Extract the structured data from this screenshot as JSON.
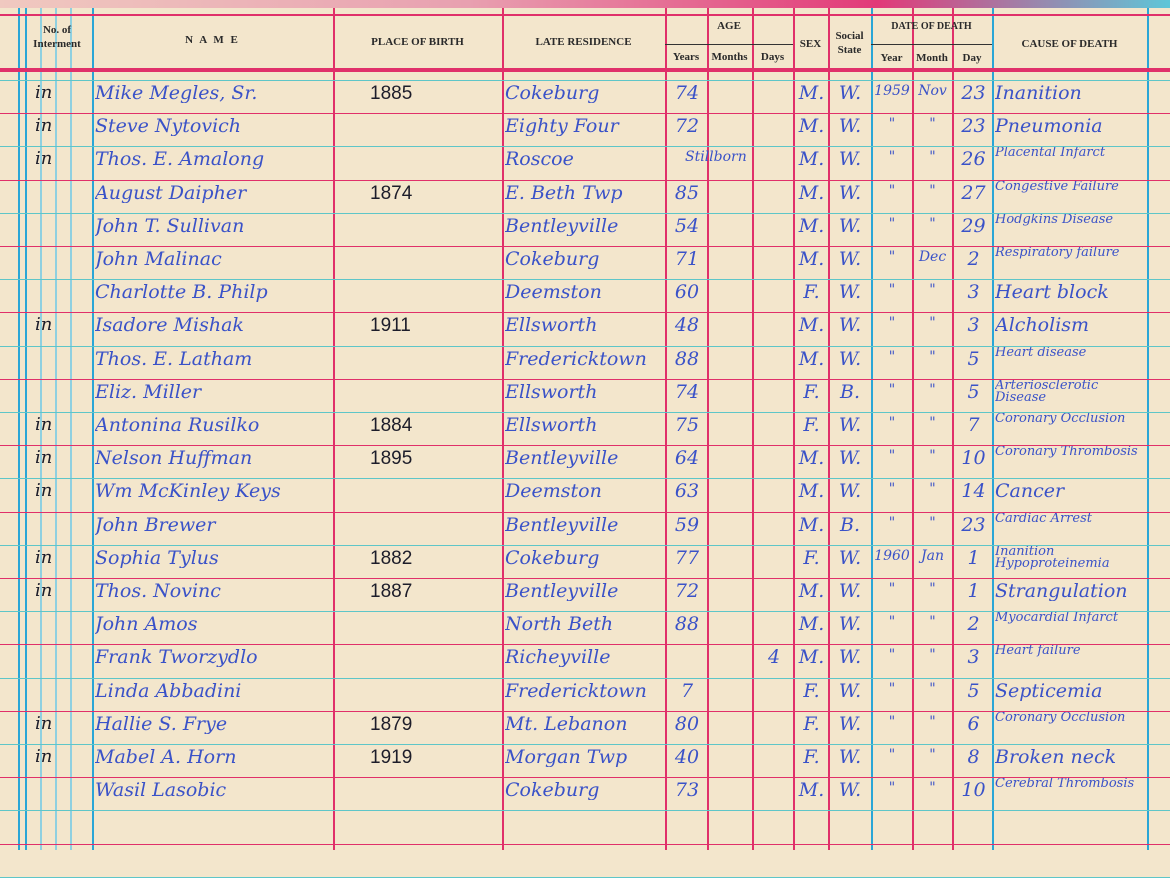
{
  "colors": {
    "paper": "#f3e6cc",
    "red_rule": "#e0306a",
    "blue_rule": "#2aa6d6",
    "ink_blue": "#3a52c8",
    "ink_black": "#1d1d2a"
  },
  "headers": {
    "interment": "No. of Interment",
    "name": "N A M E",
    "place_of_birth": "PLACE OF BIRTH",
    "late_residence": "LATE RESIDENCE",
    "age": "AGE",
    "years": "Years",
    "months": "Months",
    "days": "Days",
    "sex": "SEX",
    "social_state": "Social State",
    "date_of_death": "DATE OF DEATH",
    "year": "Year",
    "month": "Month",
    "day": "Day",
    "cause_of_death": "CAUSE OF DEATH"
  },
  "rows": [
    {
      "mark": "in",
      "name": "Mike Megles, Sr.",
      "birth": "1885",
      "residence": "Cokeburg",
      "years": "74",
      "months": "",
      "days": "",
      "sex": "M.",
      "social": "W.",
      "year": "1959",
      "month": "Nov",
      "day": "23",
      "cause": "Inanition"
    },
    {
      "mark": "in",
      "name": "Steve Nytovich",
      "birth": "",
      "residence": "Eighty Four",
      "years": "72",
      "months": "",
      "days": "",
      "sex": "M.",
      "social": "W.",
      "year": "\"",
      "month": "\"",
      "day": "23",
      "cause": "Pneumonia"
    },
    {
      "mark": "in",
      "name": "Thos. E. Amalong",
      "birth": "",
      "residence": "Roscoe",
      "years": "",
      "months": "Stillborn",
      "days": "",
      "sex": "M.",
      "social": "W.",
      "year": "\"",
      "month": "\"",
      "day": "26",
      "cause": "Placental Infarct"
    },
    {
      "mark": "",
      "name": "August Daipher",
      "birth": "1874",
      "residence": "E. Beth Twp",
      "years": "85",
      "months": "",
      "days": "",
      "sex": "M.",
      "social": "W.",
      "year": "\"",
      "month": "\"",
      "day": "27",
      "cause": "Congestive Failure"
    },
    {
      "mark": "",
      "name": "John T. Sullivan",
      "birth": "",
      "residence": "Bentleyville",
      "years": "54",
      "months": "",
      "days": "",
      "sex": "M.",
      "social": "W.",
      "year": "\"",
      "month": "\"",
      "day": "29",
      "cause": "Hodgkins Disease"
    },
    {
      "mark": "",
      "name": "John Malinac",
      "birth": "",
      "residence": "Cokeburg",
      "years": "71",
      "months": "",
      "days": "",
      "sex": "M.",
      "social": "W.",
      "year": "\"",
      "month": "Dec",
      "day": "2",
      "cause": "Respiratory failure"
    },
    {
      "mark": "",
      "name": "Charlotte B. Philp",
      "birth": "",
      "residence": "Deemston",
      "years": "60",
      "months": "",
      "days": "",
      "sex": "F.",
      "social": "W.",
      "year": "\"",
      "month": "\"",
      "day": "3",
      "cause": "Heart block"
    },
    {
      "mark": "in",
      "name": "Isadore Mishak",
      "birth": "1911",
      "residence": "Ellsworth",
      "years": "48",
      "months": "",
      "days": "",
      "sex": "M.",
      "social": "W.",
      "year": "\"",
      "month": "\"",
      "day": "3",
      "cause": "Alcholism"
    },
    {
      "mark": "",
      "name": "Thos. E. Latham",
      "birth": "",
      "residence": "Fredericktown",
      "years": "88",
      "months": "",
      "days": "",
      "sex": "M.",
      "social": "W.",
      "year": "\"",
      "month": "\"",
      "day": "5",
      "cause": "Heart disease"
    },
    {
      "mark": "",
      "name": "Eliz. Miller",
      "birth": "",
      "residence": "Ellsworth",
      "years": "74",
      "months": "",
      "days": "",
      "sex": "F.",
      "social": "B.",
      "year": "\"",
      "month": "\"",
      "day": "5",
      "cause": "Arteriosclerotic Disease"
    },
    {
      "mark": "in",
      "name": "Antonina Rusilko",
      "birth": "1884",
      "residence": "Ellsworth",
      "years": "75",
      "months": "",
      "days": "",
      "sex": "F.",
      "social": "W.",
      "year": "\"",
      "month": "\"",
      "day": "7",
      "cause": "Coronary Occlusion"
    },
    {
      "mark": "in",
      "name": "Nelson Huffman",
      "birth": "1895",
      "residence": "Bentleyville",
      "years": "64",
      "months": "",
      "days": "",
      "sex": "M.",
      "social": "W.",
      "year": "\"",
      "month": "\"",
      "day": "10",
      "cause": "Coronary Thrombosis"
    },
    {
      "mark": "in",
      "name": "Wm McKinley Keys",
      "birth": "",
      "residence": "Deemston",
      "years": "63",
      "months": "",
      "days": "",
      "sex": "M.",
      "social": "W.",
      "year": "\"",
      "month": "\"",
      "day": "14",
      "cause": "Cancer"
    },
    {
      "mark": "",
      "name": "John Brewer",
      "birth": "",
      "residence": "Bentleyville",
      "years": "59",
      "months": "",
      "days": "",
      "sex": "M.",
      "social": "B.",
      "year": "\"",
      "month": "\"",
      "day": "23",
      "cause": "Cardiac Arrest"
    },
    {
      "mark": "in",
      "name": "Sophia Tylus",
      "birth": "1882",
      "residence": "Cokeburg",
      "years": "77",
      "months": "",
      "days": "",
      "sex": "F.",
      "social": "W.",
      "year": "1960",
      "month": "Jan",
      "day": "1",
      "cause": "Inanition Hypoproteinemia"
    },
    {
      "mark": "in",
      "name": "Thos. Novinc",
      "birth": "1887",
      "residence": "Bentleyville",
      "years": "72",
      "months": "",
      "days": "",
      "sex": "M.",
      "social": "W.",
      "year": "\"",
      "month": "\"",
      "day": "1",
      "cause": "Strangulation"
    },
    {
      "mark": "",
      "name": "John Amos",
      "birth": "",
      "residence": "North Beth",
      "years": "88",
      "months": "",
      "days": "",
      "sex": "M.",
      "social": "W.",
      "year": "\"",
      "month": "\"",
      "day": "2",
      "cause": "Myocardial Infarct"
    },
    {
      "mark": "",
      "name": "Frank Tworzydlo",
      "birth": "",
      "residence": "Richeyville",
      "years": "",
      "months": "",
      "days": "4",
      "sex": "M.",
      "social": "W.",
      "year": "\"",
      "month": "\"",
      "day": "3",
      "cause": "Heart failure"
    },
    {
      "mark": "",
      "name": "Linda Abbadini",
      "birth": "",
      "residence": "Fredericktown",
      "years": "7",
      "months": "",
      "days": "",
      "sex": "F.",
      "social": "W.",
      "year": "\"",
      "month": "\"",
      "day": "5",
      "cause": "Septicemia"
    },
    {
      "mark": "in",
      "name": "Hallie S. Frye",
      "birth": "1879",
      "residence": "Mt. Lebanon",
      "years": "80",
      "months": "",
      "days": "",
      "sex": "F.",
      "social": "W.",
      "year": "\"",
      "month": "\"",
      "day": "6",
      "cause": "Coronary Occlusion"
    },
    {
      "mark": "in",
      "name": "Mabel A. Horn",
      "birth": "1919",
      "residence": "Morgan Twp",
      "years": "40",
      "months": "",
      "days": "",
      "sex": "F.",
      "social": "W.",
      "year": "\"",
      "month": "\"",
      "day": "8",
      "cause": "Broken neck"
    },
    {
      "mark": "",
      "name": "Wasil Lasobic",
      "birth": "",
      "residence": "Cokeburg",
      "years": "73",
      "months": "",
      "days": "",
      "sex": "M.",
      "social": "W.",
      "year": "\"",
      "month": "\"",
      "day": "10",
      "cause": "Cerebral Thrombosis"
    }
  ]
}
